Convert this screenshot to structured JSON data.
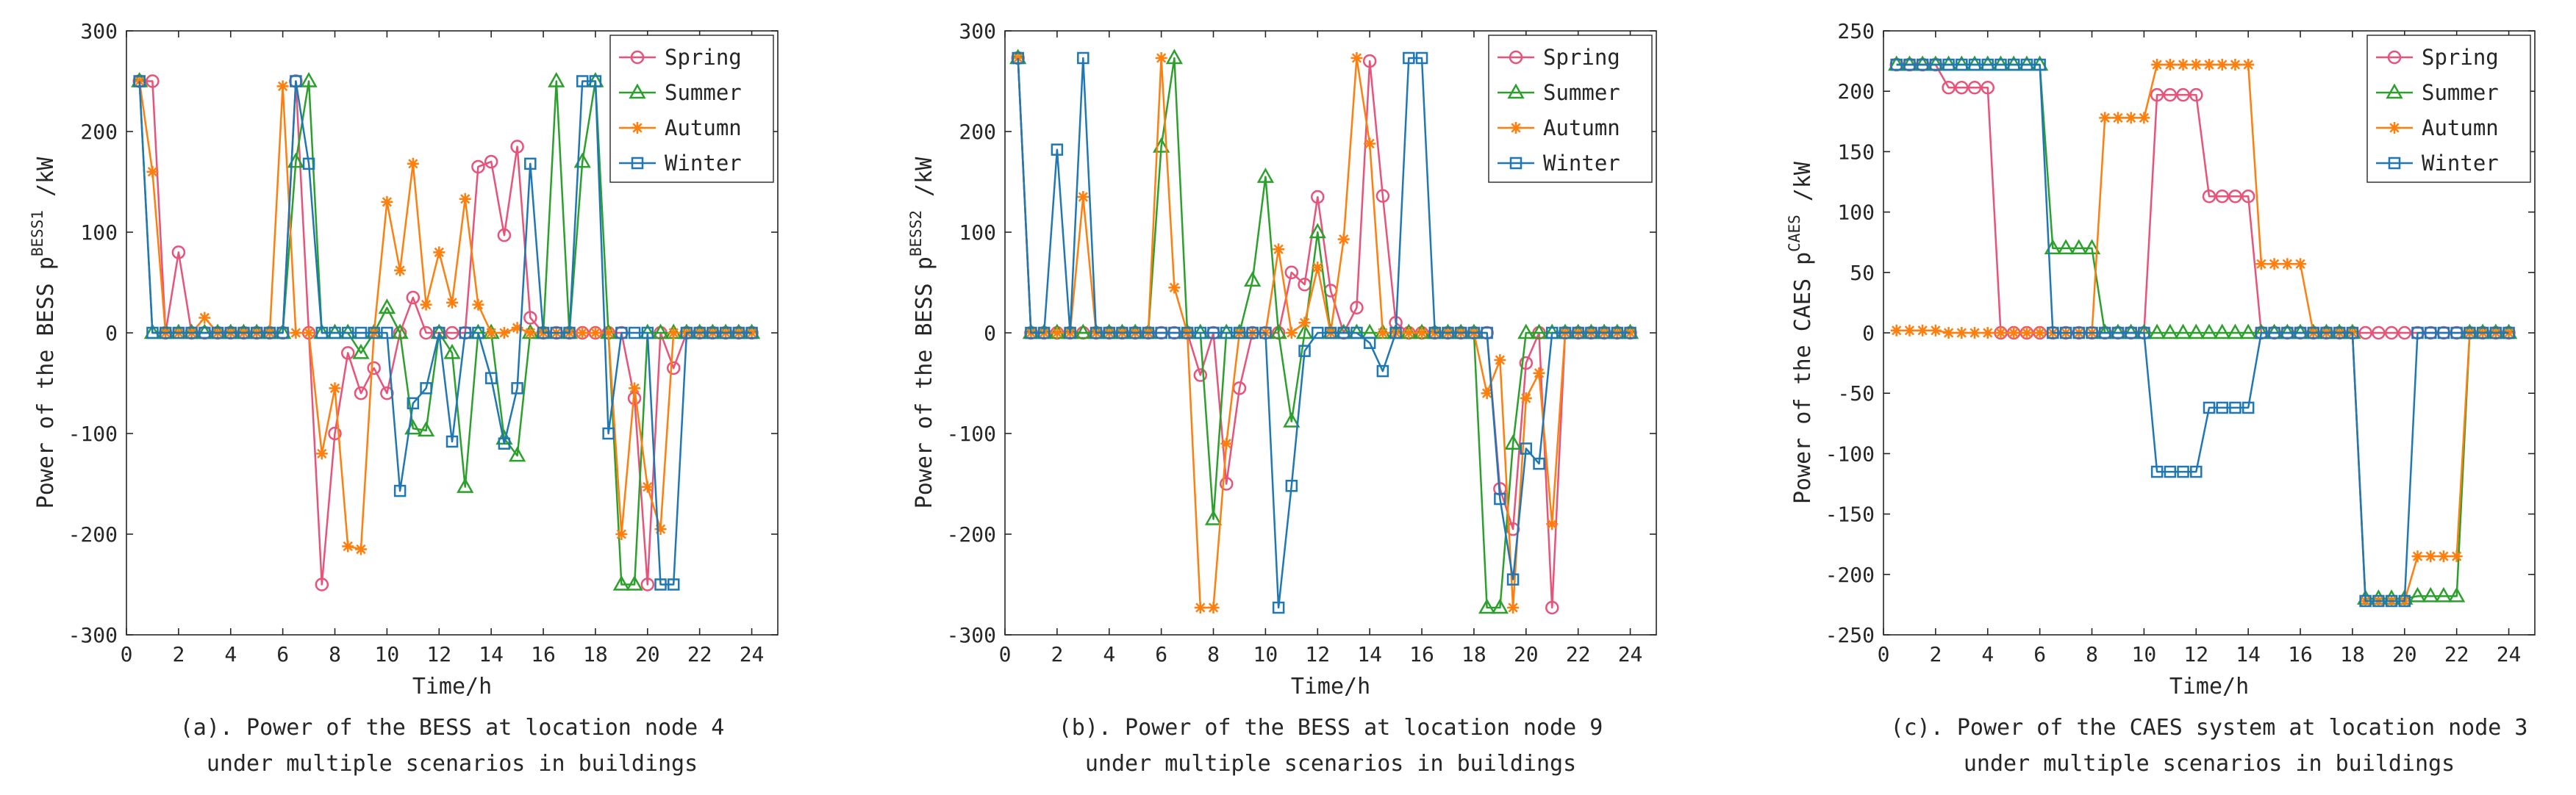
{
  "figure": {
    "legend_labels": [
      "Spring",
      "Summer",
      "Autumn",
      "Winter"
    ],
    "colors": {
      "Spring": "#e8537a",
      "Summer": "#2ca02c",
      "Autumn": "#ff7f0e",
      "Winter": "#1f77b4"
    }
  },
  "chart_data": [
    {
      "type": "line",
      "caption_line1": "(a). Power of the BESS at location node 4",
      "caption_line2": "under multiple scenarios in buildings",
      "xlabel": "Time/h",
      "ylabel_prefix": "Power of the BESS p",
      "ylabel_sup": "BESS1",
      "ylabel_unit": "/kW",
      "xlim": [
        0,
        25
      ],
      "ylim": [
        -300,
        300
      ],
      "xticks": [
        0,
        2,
        4,
        6,
        8,
        10,
        12,
        14,
        16,
        18,
        20,
        22,
        24
      ],
      "yticks": [
        -300,
        -200,
        -100,
        0,
        100,
        200,
        300
      ],
      "legend_position": "top-right",
      "x": [
        0.5,
        1,
        1.5,
        2,
        2.5,
        3,
        3.5,
        4,
        4.5,
        5,
        5.5,
        6,
        6.5,
        7,
        7.5,
        8,
        8.5,
        9,
        9.5,
        10,
        10.5,
        11,
        11.5,
        12,
        12.5,
        13,
        13.5,
        14,
        14.5,
        15,
        15.5,
        16,
        16.5,
        17,
        17.5,
        18,
        18.5,
        19,
        19.5,
        20,
        20.5,
        21,
        21.5,
        22,
        22.5,
        23,
        23.5,
        24
      ],
      "series": [
        {
          "name": "Spring",
          "marker": "circle",
          "values": [
            250,
            250,
            0,
            80,
            0,
            0,
            0,
            0,
            0,
            0,
            0,
            0,
            250,
            0,
            -250,
            -100,
            -20,
            -60,
            -35,
            -60,
            0,
            35,
            0,
            0,
            0,
            0,
            165,
            170,
            97,
            185,
            15,
            0,
            0,
            0,
            0,
            0,
            0,
            0,
            -65,
            -250,
            0,
            -35,
            0,
            0,
            0,
            0,
            0,
            0
          ]
        },
        {
          "name": "Summer",
          "marker": "triangle",
          "values": [
            250,
            0,
            0,
            0,
            0,
            0,
            0,
            0,
            0,
            0,
            0,
            0,
            170,
            250,
            0,
            0,
            0,
            -20,
            0,
            25,
            0,
            -95,
            -97,
            0,
            -20,
            -153,
            0,
            0,
            -105,
            -122,
            0,
            0,
            250,
            0,
            170,
            250,
            0,
            -250,
            -250,
            0,
            0,
            0,
            0,
            0,
            0,
            0,
            0,
            0
          ]
        },
        {
          "name": "Autumn",
          "marker": "star",
          "values": [
            250,
            160,
            0,
            0,
            0,
            15,
            0,
            0,
            0,
            0,
            0,
            245,
            0,
            0,
            -120,
            -55,
            -212,
            -215,
            0,
            130,
            62,
            168,
            28,
            80,
            30,
            133,
            28,
            0,
            0,
            5,
            0,
            0,
            0,
            0,
            0,
            0,
            0,
            -200,
            -55,
            -153,
            -195,
            0,
            0,
            0,
            0,
            0,
            0,
            0
          ]
        },
        {
          "name": "Winter",
          "marker": "square",
          "values": [
            250,
            0,
            0,
            0,
            0,
            0,
            0,
            0,
            0,
            0,
            0,
            0,
            250,
            168,
            0,
            0,
            0,
            0,
            0,
            0,
            -157,
            -70,
            -55,
            0,
            -108,
            0,
            0,
            -45,
            -110,
            -55,
            168,
            0,
            0,
            0,
            250,
            250,
            -100,
            0,
            0,
            0,
            -250,
            -250,
            0,
            0,
            0,
            0,
            0,
            0
          ]
        }
      ]
    },
    {
      "type": "line",
      "caption_line1": "(b). Power of the BESS at location node 9",
      "caption_line2": "under multiple scenarios in buildings",
      "xlabel": "Time/h",
      "ylabel_prefix": "Power of the BESS p",
      "ylabel_sup": "BESS2",
      "ylabel_unit": "/kW",
      "xlim": [
        0,
        25
      ],
      "ylim": [
        -300,
        300
      ],
      "xticks": [
        0,
        2,
        4,
        6,
        8,
        10,
        12,
        14,
        16,
        18,
        20,
        22,
        24
      ],
      "yticks": [
        -300,
        -200,
        -100,
        0,
        100,
        200,
        300
      ],
      "legend_position": "top-right",
      "x": [
        0.5,
        1,
        1.5,
        2,
        2.5,
        3,
        3.5,
        4,
        4.5,
        5,
        5.5,
        6,
        6.5,
        7,
        7.5,
        8,
        8.5,
        9,
        9.5,
        10,
        10.5,
        11,
        11.5,
        12,
        12.5,
        13,
        13.5,
        14,
        14.5,
        15,
        15.5,
        16,
        16.5,
        17,
        17.5,
        18,
        18.5,
        19,
        19.5,
        20,
        20.5,
        21,
        21.5,
        22,
        22.5,
        23,
        23.5,
        24
      ],
      "series": [
        {
          "name": "Spring",
          "marker": "circle",
          "values": [
            273,
            0,
            0,
            0,
            0,
            0,
            0,
            0,
            0,
            0,
            0,
            0,
            0,
            0,
            -42,
            0,
            -150,
            -55,
            0,
            0,
            0,
            60,
            48,
            135,
            42,
            0,
            25,
            270,
            136,
            10,
            0,
            0,
            0,
            0,
            0,
            0,
            0,
            -155,
            -195,
            -30,
            0,
            -273,
            0,
            0,
            0,
            0,
            0,
            0
          ]
        },
        {
          "name": "Summer",
          "marker": "triangle",
          "values": [
            273,
            0,
            0,
            0,
            0,
            0,
            0,
            0,
            0,
            0,
            0,
            185,
            273,
            0,
            0,
            -185,
            0,
            0,
            52,
            155,
            0,
            -88,
            0,
            100,
            0,
            0,
            0,
            0,
            0,
            0,
            0,
            0,
            0,
            0,
            0,
            0,
            -273,
            -273,
            -110,
            0,
            0,
            0,
            0,
            0,
            0,
            0,
            0,
            0
          ]
        },
        {
          "name": "Autumn",
          "marker": "star",
          "values": [
            273,
            0,
            0,
            0,
            0,
            135,
            0,
            0,
            0,
            0,
            0,
            273,
            45,
            0,
            -273,
            -273,
            -110,
            0,
            0,
            0,
            83,
            0,
            10,
            65,
            0,
            93,
            273,
            188,
            0,
            0,
            0,
            0,
            0,
            0,
            0,
            0,
            -60,
            -27,
            -273,
            -65,
            -40,
            -190,
            0,
            0,
            0,
            0,
            0,
            0
          ]
        },
        {
          "name": "Winter",
          "marker": "square",
          "values": [
            273,
            0,
            0,
            182,
            0,
            273,
            0,
            0,
            0,
            0,
            0,
            0,
            0,
            0,
            0,
            0,
            0,
            0,
            0,
            0,
            -273,
            -152,
            -18,
            0,
            0,
            0,
            0,
            -10,
            -38,
            0,
            273,
            273,
            0,
            0,
            0,
            0,
            0,
            -165,
            -245,
            -115,
            -130,
            0,
            0,
            0,
            0,
            0,
            0,
            0
          ]
        }
      ]
    },
    {
      "type": "line",
      "caption_line1": "(c). Power of the CAES system at location node 3",
      "caption_line2": "under multiple scenarios in buildings",
      "xlabel": "Time/h",
      "ylabel_prefix": "Power of the CAES p",
      "ylabel_sup": "CAES",
      "ylabel_unit": "/kW",
      "xlim": [
        0,
        25
      ],
      "ylim": [
        -250,
        250
      ],
      "xticks": [
        0,
        2,
        4,
        6,
        8,
        10,
        12,
        14,
        16,
        18,
        20,
        22,
        24
      ],
      "yticks": [
        -250,
        -200,
        -150,
        -100,
        -50,
        0,
        50,
        100,
        150,
        200,
        250
      ],
      "legend_position": "top-right",
      "x": [
        0.5,
        1,
        1.5,
        2,
        2.5,
        3,
        3.5,
        4,
        4.5,
        5,
        5.5,
        6,
        6.5,
        7,
        7.5,
        8,
        8.5,
        9,
        9.5,
        10,
        10.5,
        11,
        11.5,
        12,
        12.5,
        13,
        13.5,
        14,
        14.5,
        15,
        15.5,
        16,
        16.5,
        17,
        17.5,
        18,
        18.5,
        19,
        19.5,
        20,
        20.5,
        21,
        21.5,
        22,
        22.5,
        23,
        23.5,
        24
      ],
      "series": [
        {
          "name": "Spring",
          "marker": "circle",
          "values": [
            222,
            222,
            222,
            222,
            203,
            203,
            203,
            203,
            0,
            0,
            0,
            0,
            0,
            0,
            0,
            0,
            0,
            0,
            0,
            0,
            197,
            197,
            197,
            197,
            113,
            113,
            113,
            113,
            0,
            0,
            0,
            0,
            0,
            0,
            0,
            0,
            0,
            0,
            0,
            0,
            0,
            0,
            0,
            0,
            0,
            0,
            0,
            0
          ]
        },
        {
          "name": "Summer",
          "marker": "triangle",
          "values": [
            222,
            222,
            222,
            222,
            222,
            222,
            222,
            222,
            222,
            222,
            222,
            222,
            70,
            70,
            70,
            70,
            0,
            0,
            0,
            0,
            0,
            0,
            0,
            0,
            0,
            0,
            0,
            0,
            0,
            0,
            0,
            0,
            0,
            0,
            0,
            0,
            -220,
            -220,
            -220,
            -220,
            -218,
            -218,
            -218,
            -218,
            0,
            0,
            0,
            0
          ]
        },
        {
          "name": "Autumn",
          "marker": "star",
          "values": [
            2,
            2,
            2,
            2,
            0,
            0,
            0,
            0,
            0,
            0,
            0,
            0,
            0,
            0,
            0,
            0,
            178,
            178,
            178,
            178,
            222,
            222,
            222,
            222,
            222,
            222,
            222,
            222,
            57,
            57,
            57,
            57,
            0,
            0,
            0,
            0,
            -222,
            -222,
            -222,
            -222,
            -185,
            -185,
            -185,
            -185,
            0,
            0,
            0,
            0
          ]
        },
        {
          "name": "Winter",
          "marker": "square",
          "values": [
            222,
            222,
            222,
            222,
            222,
            222,
            222,
            222,
            222,
            222,
            222,
            222,
            0,
            0,
            0,
            0,
            0,
            0,
            0,
            0,
            -115,
            -115,
            -115,
            -115,
            -62,
            -62,
            -62,
            -62,
            0,
            0,
            0,
            0,
            0,
            0,
            0,
            0,
            -222,
            -222,
            -222,
            -222,
            0,
            0,
            0,
            0,
            0,
            0,
            0,
            0
          ]
        }
      ]
    }
  ]
}
